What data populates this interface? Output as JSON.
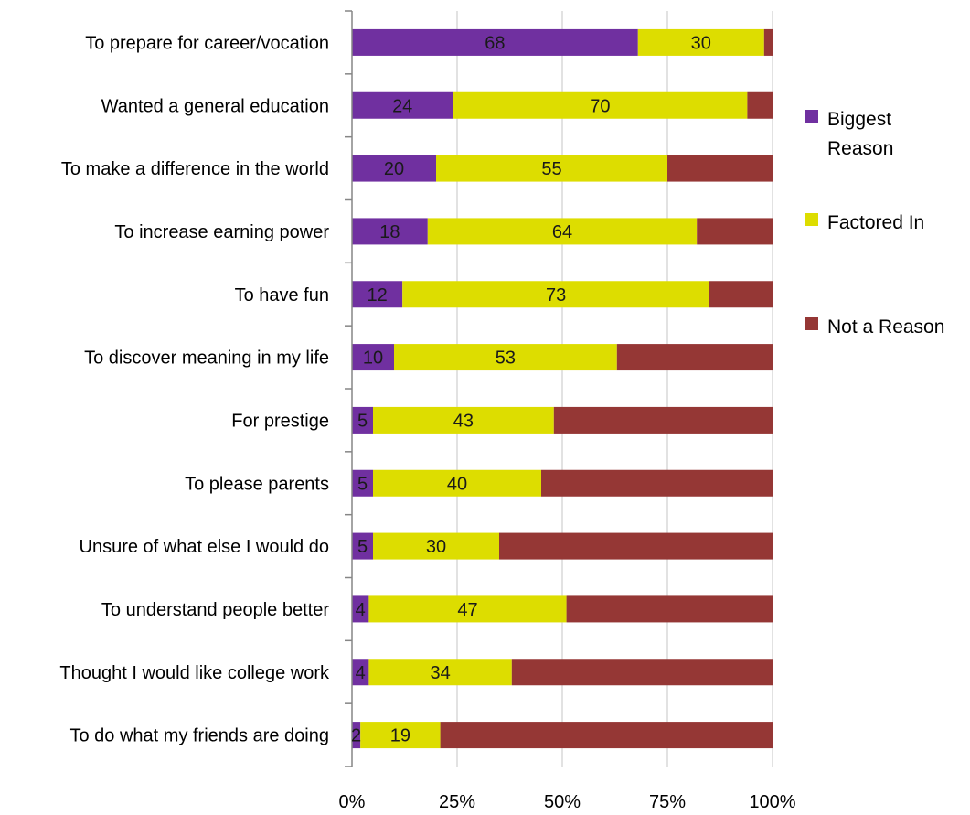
{
  "chart_data": {
    "type": "bar",
    "orientation": "horizontal",
    "stacked": "percent",
    "title": "",
    "xlabel": "",
    "ylabel": "",
    "xlim": [
      0,
      100
    ],
    "x_ticks": [
      "0%",
      "25%",
      "50%",
      "75%",
      "100%"
    ],
    "grid": "vertical",
    "legend_position": "right",
    "categories": [
      "To prepare for career/vocation",
      "Wanted a general education",
      "To make a difference in the world",
      "To increase earning power",
      "To have fun",
      "To discover meaning in my life",
      "For prestige",
      "To please parents",
      "Unsure of what else I would do",
      "To understand people better",
      "Thought I would like college work",
      "To do what my friends are doing"
    ],
    "series": [
      {
        "name": "Biggest Reason",
        "legend_lines": [
          "Biggest",
          "Reason"
        ],
        "color": "#7030A0",
        "values": [
          68,
          24,
          20,
          18,
          12,
          10,
          5,
          5,
          5,
          4,
          4,
          2
        ]
      },
      {
        "name": "Factored In",
        "legend_lines": [
          "Factored In"
        ],
        "color": "#DDDD00",
        "values": [
          30,
          70,
          55,
          64,
          73,
          53,
          43,
          40,
          30,
          47,
          34,
          19
        ]
      },
      {
        "name": "Not a Reason",
        "legend_lines": [
          "Not a Reason"
        ],
        "color": "#953735",
        "values": [
          2,
          6,
          25,
          18,
          15,
          37,
          52,
          55,
          65,
          49,
          62,
          79
        ]
      }
    ],
    "data_labels_for_series": [
      0,
      1
    ]
  }
}
